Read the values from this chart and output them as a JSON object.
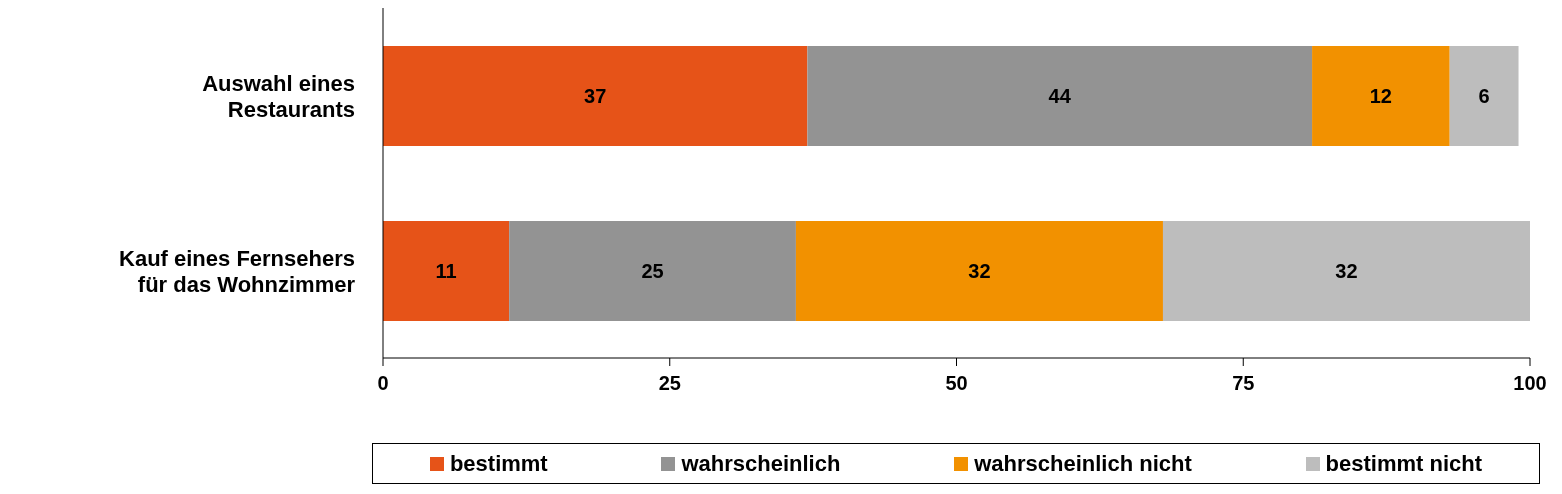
{
  "chart_data": {
    "type": "bar",
    "orientation": "horizontal",
    "stacked": true,
    "categories": [
      "Auswahl eines Restaurants",
      "Kauf eines Fernsehers für das Wohnzimmer"
    ],
    "series": [
      {
        "name": "bestimmt",
        "color": "#e65318",
        "values": [
          37,
          11
        ]
      },
      {
        "name": "wahrscheinlich",
        "color": "#939393",
        "values": [
          44,
          25
        ]
      },
      {
        "name": "wahrscheinlich nicht",
        "color": "#f29100",
        "values": [
          12,
          32
        ]
      },
      {
        "name": "bestimmt nicht",
        "color": "#bdbdbd",
        "values": [
          6,
          32
        ]
      }
    ],
    "xlim": [
      0,
      100
    ],
    "xticks": [
      0,
      25,
      50,
      75,
      100
    ],
    "data_labels": true,
    "legend": "bottom",
    "grid": false
  }
}
